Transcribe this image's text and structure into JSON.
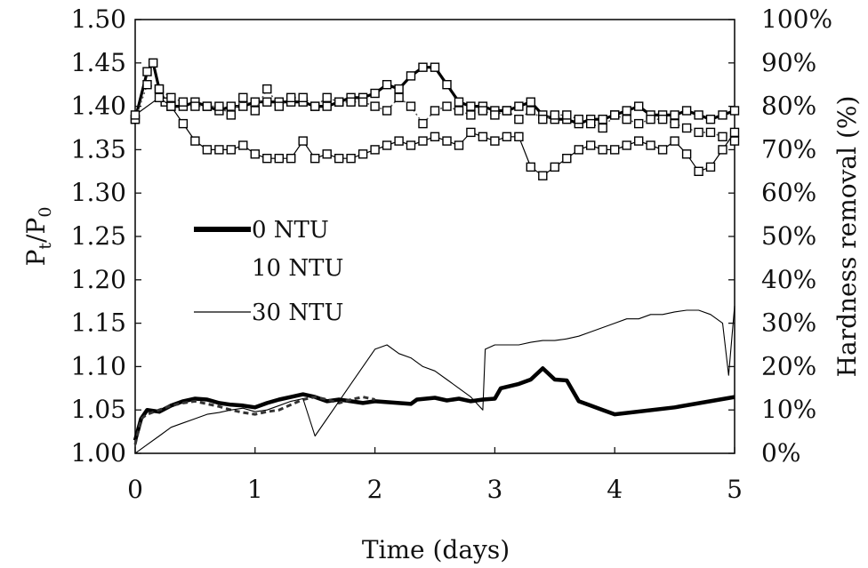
{
  "chart_data": {
    "type": "line",
    "xlabel": "Time (days)",
    "ylabel_main": "P",
    "ylabel_sub_t": "t",
    "ylabel_slash": "/P",
    "ylabel_sub_0": "0",
    "y2label": "Hardness removal (%)",
    "xlim": [
      0,
      5
    ],
    "ylim": [
      1.0,
      1.5
    ],
    "y2lim": [
      0,
      100
    ],
    "xticks": [
      "0",
      "1",
      "2",
      "3",
      "4",
      "5"
    ],
    "yticks": [
      "1.00",
      "1.05",
      "1.10",
      "1.15",
      "1.20",
      "1.25",
      "1.30",
      "1.35",
      "1.40",
      "1.45",
      "1.50"
    ],
    "y2ticks": [
      "0%",
      "10%",
      "20%",
      "30%",
      "40%",
      "50%",
      "60%",
      "70%",
      "80%",
      "90%",
      "100%"
    ],
    "legend": [
      "0 NTU",
      "10 NTU",
      "30 NTU"
    ],
    "grid": false,
    "series": [
      {
        "name": "0 NTU",
        "kind": "pressure",
        "axis": "left",
        "x": [
          0.0,
          0.05,
          0.1,
          0.2,
          0.3,
          0.4,
          0.5,
          0.6,
          0.7,
          0.8,
          0.9,
          1.0,
          1.1,
          1.2,
          1.3,
          1.4,
          1.5,
          1.6,
          1.7,
          1.8,
          1.9,
          2.0,
          2.3,
          2.35,
          2.5,
          2.6,
          2.7,
          2.8,
          2.9,
          3.0,
          3.05,
          3.2,
          3.3,
          3.4,
          3.5,
          3.6,
          3.7,
          3.8,
          3.9,
          4.0,
          4.5,
          5.0
        ],
        "y": [
          1.015,
          1.04,
          1.05,
          1.048,
          1.055,
          1.06,
          1.063,
          1.062,
          1.058,
          1.056,
          1.055,
          1.053,
          1.058,
          1.062,
          1.065,
          1.068,
          1.065,
          1.06,
          1.062,
          1.06,
          1.058,
          1.06,
          1.057,
          1.062,
          1.064,
          1.061,
          1.063,
          1.06,
          1.062,
          1.063,
          1.075,
          1.08,
          1.085,
          1.098,
          1.085,
          1.084,
          1.06,
          1.055,
          1.05,
          1.045,
          1.053,
          1.065
        ]
      },
      {
        "name": "10 NTU",
        "kind": "pressure",
        "axis": "left",
        "x": [
          0.0,
          0.05,
          0.1,
          0.2,
          0.3,
          0.4,
          0.5,
          0.6,
          0.7,
          0.8,
          0.9,
          1.0,
          1.1,
          1.2,
          1.3,
          1.4,
          1.5,
          1.6,
          1.7,
          1.8,
          1.9,
          2.0
        ],
        "y": [
          1.01,
          1.04,
          1.045,
          1.05,
          1.055,
          1.058,
          1.06,
          1.057,
          1.054,
          1.05,
          1.047,
          1.045,
          1.048,
          1.05,
          1.056,
          1.062,
          1.065,
          1.062,
          1.058,
          1.062,
          1.065,
          1.062
        ]
      },
      {
        "name": "30 NTU",
        "kind": "pressure",
        "axis": "left",
        "x": [
          0.0,
          0.1,
          0.2,
          0.3,
          0.4,
          0.5,
          0.6,
          0.7,
          0.8,
          0.9,
          1.0,
          1.1,
          1.2,
          1.3,
          1.4,
          1.5,
          1.6,
          1.7,
          1.8,
          1.9,
          2.0,
          2.1,
          2.2,
          2.3,
          2.4,
          2.5,
          2.6,
          2.7,
          2.8,
          2.9,
          2.92,
          3.0,
          3.1,
          3.2,
          3.3,
          3.4,
          3.5,
          3.6,
          3.7,
          3.8,
          3.9,
          4.0,
          4.1,
          4.2,
          4.3,
          4.4,
          4.5,
          4.6,
          4.7,
          4.8,
          4.9,
          4.95,
          5.0
        ],
        "y": [
          1.0,
          1.01,
          1.02,
          1.03,
          1.035,
          1.04,
          1.045,
          1.047,
          1.05,
          1.052,
          1.048,
          1.05,
          1.055,
          1.06,
          1.063,
          1.02,
          1.04,
          1.06,
          1.08,
          1.1,
          1.12,
          1.125,
          1.115,
          1.11,
          1.1,
          1.095,
          1.085,
          1.075,
          1.065,
          1.05,
          1.12,
          1.125,
          1.125,
          1.125,
          1.128,
          1.13,
          1.13,
          1.132,
          1.135,
          1.14,
          1.145,
          1.15,
          1.155,
          1.155,
          1.16,
          1.16,
          1.163,
          1.165,
          1.165,
          1.16,
          1.15,
          1.09,
          1.17
        ]
      },
      {
        "name": "0 NTU",
        "kind": "hardness",
        "axis": "right",
        "x": [
          0.0,
          0.1,
          0.15,
          0.2,
          0.25,
          0.3,
          0.4,
          0.5,
          0.6,
          0.7,
          0.8,
          0.9,
          1.0,
          1.1,
          1.2,
          1.3,
          1.4,
          1.5,
          1.6,
          1.7,
          1.8,
          1.9,
          2.0,
          2.1,
          2.2,
          2.3,
          2.4,
          2.5,
          2.6,
          2.7,
          2.8,
          2.9,
          3.0,
          3.1,
          3.2,
          3.3,
          3.4,
          3.5,
          3.6,
          3.7,
          3.8,
          3.9,
          4.0,
          4.1,
          4.2,
          4.3,
          4.4,
          4.5,
          4.6,
          4.7,
          4.8,
          4.9,
          5.0
        ],
        "y": [
          77,
          88,
          90,
          84,
          81,
          80,
          80,
          81,
          80,
          79,
          80,
          80,
          81,
          81,
          81,
          81,
          81,
          80,
          80,
          81,
          82,
          82,
          83,
          85,
          84,
          87,
          89,
          89,
          85,
          81,
          80,
          80,
          79,
          79,
          80,
          81,
          78,
          77,
          77,
          76,
          77,
          77,
          78,
          79,
          80,
          78,
          78,
          78,
          79,
          78,
          77,
          78,
          79
        ]
      },
      {
        "name": "10 NTU",
        "kind": "hardness",
        "axis": "right",
        "x": [
          0.0,
          0.1,
          0.2,
          0.3,
          0.4,
          0.5,
          0.6,
          0.7,
          0.8,
          0.9,
          1.0,
          1.1,
          1.2,
          1.3,
          1.4,
          1.5,
          1.6,
          1.7,
          1.8,
          1.9,
          2.0,
          2.1,
          2.2,
          2.3,
          2.4,
          2.5,
          2.6,
          2.7,
          2.8,
          2.9,
          3.0,
          3.1,
          3.2,
          3.3,
          3.4,
          3.5,
          3.6,
          3.7,
          3.8,
          3.9,
          4.0,
          4.1,
          4.2,
          4.3,
          4.4,
          4.5,
          4.6,
          4.7,
          4.8,
          4.9,
          5.0
        ],
        "y": [
          77,
          85,
          84,
          82,
          81,
          80,
          80,
          80,
          78,
          82,
          79,
          84,
          80,
          82,
          82,
          80,
          82,
          81,
          81,
          81,
          80,
          79,
          82,
          80,
          76,
          79,
          80,
          79,
          78,
          79,
          78,
          79,
          77,
          79,
          77,
          78,
          78,
          77,
          76,
          75,
          78,
          77,
          76,
          77,
          77,
          76,
          75,
          74,
          74,
          73,
          72
        ]
      },
      {
        "name": "30 NTU",
        "kind": "hardness",
        "axis": "right",
        "x": [
          0.0,
          0.2,
          0.3,
          0.4,
          0.5,
          0.6,
          0.7,
          0.8,
          0.9,
          1.0,
          1.1,
          1.2,
          1.3,
          1.4,
          1.5,
          1.6,
          1.7,
          1.8,
          1.9,
          2.0,
          2.1,
          2.2,
          2.3,
          2.4,
          2.5,
          2.6,
          2.7,
          2.8,
          2.9,
          3.0,
          3.1,
          3.2,
          3.3,
          3.4,
          3.5,
          3.6,
          3.7,
          3.8,
          3.9,
          4.0,
          4.1,
          4.2,
          4.3,
          4.4,
          4.5,
          4.6,
          4.7,
          4.8,
          4.9,
          5.0
        ],
        "y": [
          78,
          82,
          80,
          76,
          72,
          70,
          70,
          70,
          71,
          69,
          68,
          68,
          68,
          72,
          68,
          69,
          68,
          68,
          69,
          70,
          71,
          72,
          71,
          72,
          73,
          72,
          71,
          74,
          73,
          72,
          73,
          73,
          66,
          64,
          66,
          68,
          70,
          71,
          70,
          70,
          71,
          72,
          71,
          70,
          72,
          69,
          65,
          66,
          70,
          74
        ]
      }
    ]
  }
}
